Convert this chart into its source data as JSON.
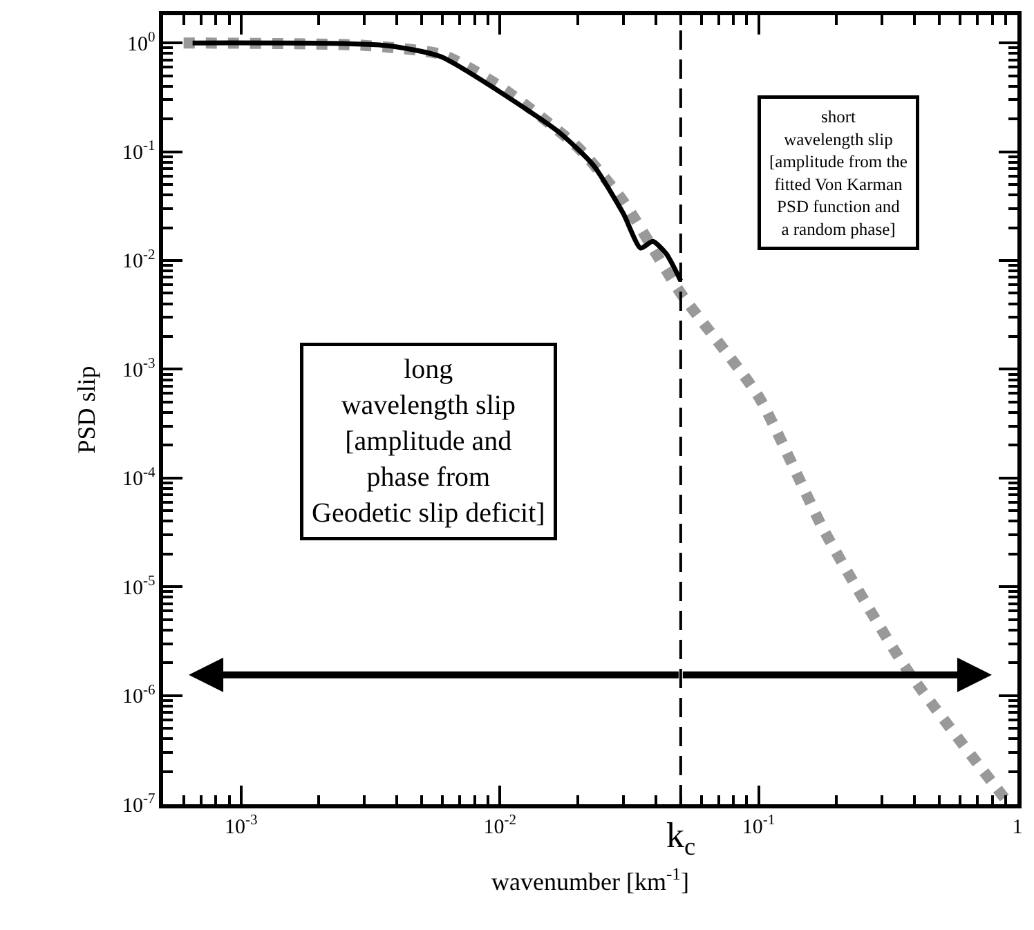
{
  "chart_data": {
    "type": "line",
    "xlabel": "wavenumber [km$^{-1}$]",
    "ylabel": "PSD slip",
    "log": "xy",
    "xlim": [
      0.0005,
      1
    ],
    "ylim": [
      1e-07,
      1.8
    ],
    "xticks": [
      {
        "value": 0.001,
        "label": "10$^{-3}$"
      },
      {
        "value": 0.01,
        "label": "10$^{-2}$"
      },
      {
        "value": 0.1,
        "label": "10$^{-1}$"
      },
      1
    ],
    "yticks": [
      {
        "value": 1e-07,
        "label": "10$^{-7}$"
      },
      {
        "value": 1e-06,
        "label": "10$^{-6}$"
      },
      {
        "value": 1e-05,
        "label": "10$^{-5}$"
      },
      {
        "value": 0.0001,
        "label": "10$^{-4}$"
      },
      {
        "value": 0.001,
        "label": "10$^{-3}$"
      },
      {
        "value": 0.01,
        "label": "10$^{-2}$"
      },
      {
        "value": 0.1,
        "label": "10$^{-1}$"
      },
      {
        "value": 1,
        "label": "10$^{0}$"
      }
    ],
    "series": [
      {
        "color": "#999999",
        "line_style": "dashed",
        "x": [
          0.0006,
          0.003,
          0.006,
          0.01,
          0.02,
          0.03,
          0.05,
          0.1,
          0.18,
          0.37,
          0.93
        ],
        "values": [
          1,
          0.95,
          0.78,
          0.4,
          0.11,
          0.035,
          0.005,
          0.00056,
          3.2e-05,
          1.8e-06,
          1e-07
        ]
      },
      {
        "color": "#000000",
        "line_style": "solid",
        "x": [
          0.00065,
          0.0036,
          0.0059,
          0.0107,
          0.017,
          0.023,
          0.03,
          0.035,
          0.039,
          0.044,
          0.05
        ],
        "values": [
          1,
          0.95,
          0.75,
          0.32,
          0.15,
          0.075,
          0.027,
          0.013,
          0.015,
          0.0115,
          0.0065
        ]
      }
    ],
    "ref_lines": [
      {
        "axis": "x",
        "value": 0.05,
        "label": "k$_{c}$",
        "line_style": "dashed",
        "color": "#000000"
      }
    ],
    "annotations": [
      "long\nwavelength slip\n[amplitude and\nphase from\nGeodetic slip deficit]",
      "short\nwavelength slip\n[amplitude from the\nfitted Von Karman\nPSD function and\na random phase]"
    ]
  }
}
